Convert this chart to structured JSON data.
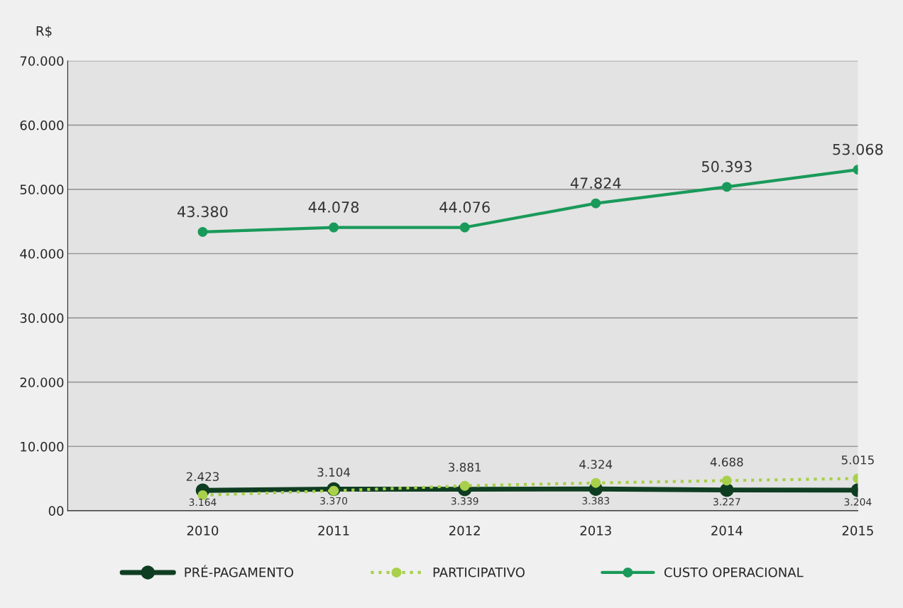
{
  "chart_data": {
    "type": "line",
    "ylabel": "R$",
    "categories": [
      "2010",
      "2011",
      "2012",
      "2013",
      "2014",
      "2015"
    ],
    "series": [
      {
        "name": "PRÉ-PAGAMENTO",
        "color": "#0f3d22",
        "line_style": "solid",
        "values": [
          3164,
          3370,
          3339,
          3383,
          3227,
          3204
        ]
      },
      {
        "name": "PARTICIPATIVO",
        "color": "#a8d04a",
        "line_style": "dotted",
        "values": [
          2423,
          3104,
          3881,
          4324,
          4688,
          5015
        ]
      },
      {
        "name": "CUSTO OPERACIONAL",
        "color": "#1a9a5a",
        "line_style": "solid",
        "values": [
          43380,
          44078,
          44076,
          47824,
          50393,
          53068
        ]
      }
    ],
    "value_labels": [
      [
        "3.164",
        "3.370",
        "3.339",
        "3.383",
        "3.227",
        "3.204"
      ],
      [
        "2.423",
        "3.104",
        "3.881",
        "4.324",
        "4.688",
        "5.015"
      ],
      [
        "43.380",
        "44.078",
        "44.076",
        "47.824",
        "50.393",
        "53.068"
      ]
    ],
    "ylim": [
      0,
      70000
    ],
    "yticks": [
      {
        "value": 0,
        "label": "00"
      },
      {
        "value": 10000,
        "label": "10.000"
      },
      {
        "value": 20000,
        "label": "20.000"
      },
      {
        "value": 30000,
        "label": "30.000"
      },
      {
        "value": 40000,
        "label": "40.000"
      },
      {
        "value": 50000,
        "label": "50.000"
      },
      {
        "value": 60000,
        "label": "60.000"
      },
      {
        "value": 70000,
        "label": "70.000"
      }
    ],
    "grid": "y",
    "legend": "bottom",
    "marker": "circle"
  }
}
